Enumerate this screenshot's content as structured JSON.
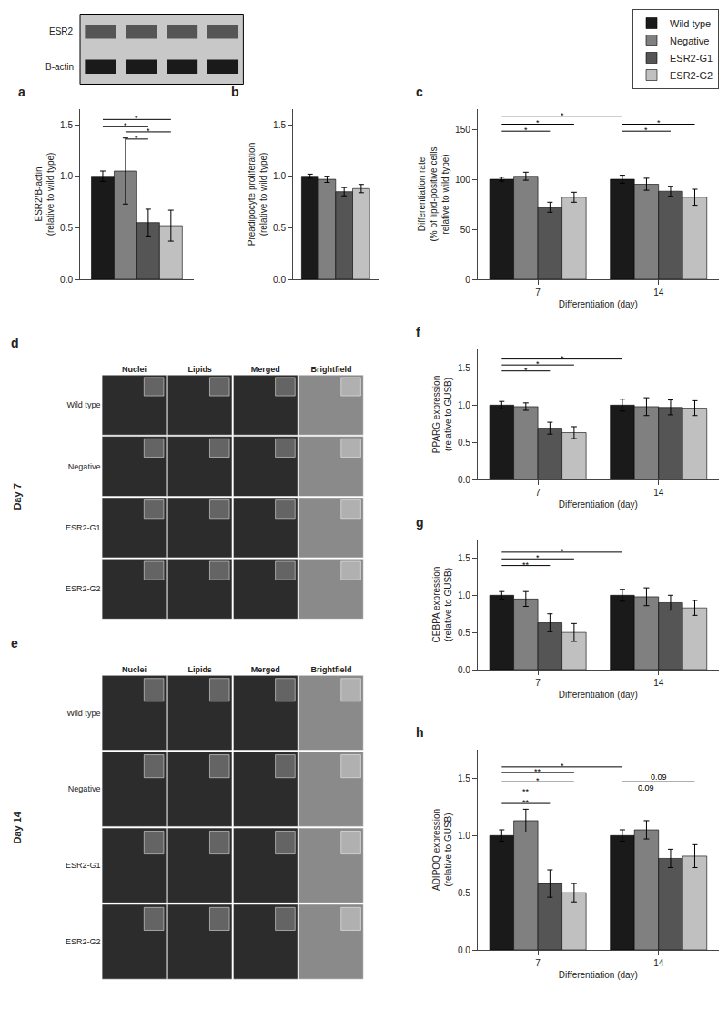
{
  "chart_data": [
    {
      "type": "blot",
      "y": [
        "ESR2",
        "B-actin"
      ]
    },
    {
      "type": "bar",
      "title": "a",
      "ylabel": "ESR2/B-actin\n(relative to wild type)",
      "categories": [
        null
      ],
      "series": [
        {
          "name": "Wild type",
          "color": "#1a1a1a",
          "values": [
            1.0
          ],
          "errors": [
            0.05
          ]
        },
        {
          "name": "Negative",
          "color": "#808080",
          "values": [
            1.05
          ],
          "errors": [
            0.32
          ]
        },
        {
          "name": "ESR2-G1",
          "color": "#555555",
          "values": [
            0.55
          ],
          "errors": [
            0.13
          ]
        },
        {
          "name": "ESR2-G2",
          "color": "#c0c0c0",
          "values": [
            0.52
          ],
          "errors": [
            0.15
          ]
        }
      ],
      "ylim": [
        0.0,
        1.65
      ],
      "yticks": [
        {
          "value": 0.0,
          "label": "0.0"
        },
        0.5,
        {
          "value": 1.0,
          "label": "1.0"
        },
        1.5
      ],
      "grid": false,
      "tick_labels": "y",
      "legend": "upper right",
      "annotations": [
        {
          "text": "*",
          "y": 1.48,
          "x1": {
            "category": null,
            "series": "Wild type"
          },
          "x2": {
            "category": null,
            "series": "ESR2-G1"
          }
        },
        {
          "text": "*",
          "y": 1.55,
          "x1": {
            "category": null,
            "series": "Wild type"
          },
          "x2": {
            "category": null,
            "series": "ESR2-G2"
          }
        },
        {
          "text": "*",
          "y": 1.36,
          "x1": {
            "category": null,
            "series": "Negative"
          },
          "x2": {
            "category": null,
            "series": "ESR2-G1"
          }
        },
        {
          "text": "*",
          "y": 1.43,
          "x1": {
            "category": null,
            "series": "Negative"
          },
          "x2": {
            "category": null,
            "series": "ESR2-G2"
          }
        }
      ]
    },
    {
      "type": "bar",
      "title": "b",
      "ylabel": "Preadipocyte proliferation\n(relative to wild type)",
      "categories": [
        null
      ],
      "series": [
        {
          "name": "Wild type",
          "color": "#1a1a1a",
          "values": [
            1.0
          ],
          "errors": [
            0.02
          ]
        },
        {
          "name": "Negative",
          "color": "#808080",
          "values": [
            0.97
          ],
          "errors": [
            0.03
          ]
        },
        {
          "name": "ESR2-G1",
          "color": "#555555",
          "values": [
            0.85
          ],
          "errors": [
            0.04
          ]
        },
        {
          "name": "ESR2-G2",
          "color": "#c0c0c0",
          "values": [
            0.88
          ],
          "errors": [
            0.04
          ]
        }
      ],
      "ylim": [
        0.0,
        1.65
      ],
      "yticks": [
        {
          "value": 0.0,
          "label": "0.0"
        },
        0.5,
        {
          "value": 1.0,
          "label": "1.0"
        },
        1.5
      ],
      "grid": false,
      "tick_labels": "y"
    },
    {
      "type": "bar",
      "title": "c",
      "ylabel": "Differentiation rate\n(% of lipid-positive cells\nrelative to wild type)",
      "xlabel": "Differentiation (day)",
      "categories": [
        "7",
        "14"
      ],
      "series": [
        {
          "name": "Wild type",
          "color": "#1a1a1a",
          "values": [
            100,
            100
          ],
          "errors": [
            2,
            4
          ]
        },
        {
          "name": "Negative",
          "color": "#808080",
          "values": [
            103,
            95
          ],
          "errors": [
            4,
            6
          ]
        },
        {
          "name": "ESR2-G1",
          "color": "#555555",
          "values": [
            72,
            88
          ],
          "errors": [
            5,
            5
          ]
        },
        {
          "name": "ESR2-G2",
          "color": "#c0c0c0",
          "values": [
            82,
            82
          ],
          "errors": [
            5,
            8
          ]
        }
      ],
      "ylim": [
        0,
        170
      ],
      "yticks": [
        0,
        50,
        100,
        150
      ],
      "grid": false,
      "annotations": [
        {
          "text": "*",
          "y": 148,
          "x1": {
            "category": "7",
            "series": "Wild type"
          },
          "x2": {
            "category": "7",
            "series": "ESR2-G1"
          }
        },
        {
          "text": "*",
          "y": 155,
          "x1": {
            "category": "7",
            "series": "Wild type"
          },
          "x2": {
            "category": "7",
            "series": "ESR2-G2"
          }
        },
        {
          "text": "*",
          "y": 163,
          "x1": {
            "category": "7",
            "series": "Wild type"
          },
          "x2": {
            "category": "14",
            "series": "Wild type"
          }
        },
        {
          "text": "*",
          "y": 148,
          "x1": {
            "category": "14",
            "series": "Wild type"
          },
          "x2": {
            "category": "14",
            "series": "ESR2-G1"
          }
        },
        {
          "text": "*",
          "y": 155,
          "x1": {
            "category": "14",
            "series": "Wild type"
          },
          "x2": {
            "category": "14",
            "series": "ESR2-G2"
          }
        }
      ]
    },
    {
      "type": "image_grid",
      "title": "d",
      "annotations": [
        "Day 7"
      ],
      "x": [
        "Nuclei",
        "Lipids",
        "Merged",
        "Brightfield"
      ],
      "y": [
        "Wild type",
        "Negative",
        "ESR2-G1",
        "ESR2-G2"
      ]
    },
    {
      "type": "image_grid",
      "title": "e",
      "annotations": [
        "Day 14"
      ],
      "x": [
        "Nuclei",
        "Lipids",
        "Merged",
        "Brightfield"
      ],
      "y": [
        "Wild type",
        "Negative",
        "ESR2-G1",
        "ESR2-G2"
      ]
    },
    {
      "type": "bar",
      "title": "f",
      "ylabel": "PPARG expression\n(relative to GUSB)",
      "xlabel": "Differentiation (day)",
      "categories": [
        "7",
        "14"
      ],
      "series": [
        {
          "name": "Wild type",
          "color": "#1a1a1a",
          "values": [
            1.0,
            1.0
          ],
          "errors": [
            0.05,
            0.08
          ]
        },
        {
          "name": "Negative",
          "color": "#808080",
          "values": [
            0.98,
            0.98
          ],
          "errors": [
            0.05,
            0.12
          ]
        },
        {
          "name": "ESR2-G1",
          "color": "#555555",
          "values": [
            0.69,
            0.97
          ],
          "errors": [
            0.08,
            0.1
          ]
        },
        {
          "name": "ESR2-G2",
          "color": "#c0c0c0",
          "values": [
            0.63,
            0.96
          ],
          "errors": [
            0.08,
            0.1
          ]
        }
      ],
      "ylim": [
        0.0,
        1.75
      ],
      "yticks": [
        {
          "value": 0.0,
          "label": "0.0"
        },
        0.5,
        {
          "value": 1.0,
          "label": "1.0"
        },
        1.5
      ],
      "grid": false,
      "annotations": [
        {
          "text": "*",
          "y": 1.46,
          "x1": {
            "category": "7",
            "series": "Wild type"
          },
          "x2": {
            "category": "7",
            "series": "ESR2-G1"
          }
        },
        {
          "text": "*",
          "y": 1.54,
          "x1": {
            "category": "7",
            "series": "Wild type"
          },
          "x2": {
            "category": "7",
            "series": "ESR2-G2"
          }
        },
        {
          "text": "*",
          "y": 1.62,
          "x1": {
            "category": "7",
            "series": "Wild type"
          },
          "x2": {
            "category": "14",
            "series": "Wild type"
          }
        }
      ]
    },
    {
      "type": "bar",
      "title": "g",
      "ylabel": "CEBPA expression\n(relative to GUSB)",
      "xlabel": "Differentiation (day)",
      "categories": [
        "7",
        "14"
      ],
      "series": [
        {
          "name": "Wild type",
          "color": "#1a1a1a",
          "values": [
            1.0,
            1.0
          ],
          "errors": [
            0.05,
            0.08
          ]
        },
        {
          "name": "Negative",
          "color": "#808080",
          "values": [
            0.95,
            0.98
          ],
          "errors": [
            0.1,
            0.12
          ]
        },
        {
          "name": "ESR2-G1",
          "color": "#555555",
          "values": [
            0.63,
            0.9
          ],
          "errors": [
            0.12,
            0.1
          ]
        },
        {
          "name": "ESR2-G2",
          "color": "#c0c0c0",
          "values": [
            0.5,
            0.83
          ],
          "errors": [
            0.12,
            0.1
          ]
        }
      ],
      "ylim": [
        0.0,
        1.75
      ],
      "yticks": [
        {
          "value": 0.0,
          "label": "0.0"
        },
        0.5,
        {
          "value": 1.0,
          "label": "1.0"
        },
        1.5
      ],
      "grid": false,
      "annotations": [
        {
          "text": "**",
          "y": 1.4,
          "x1": {
            "category": "7",
            "series": "Wild type"
          },
          "x2": {
            "category": "7",
            "series": "ESR2-G1"
          }
        },
        {
          "text": "*",
          "y": 1.49,
          "x1": {
            "category": "7",
            "series": "Wild type"
          },
          "x2": {
            "category": "7",
            "series": "ESR2-G2"
          }
        },
        {
          "text": "*",
          "y": 1.58,
          "x1": {
            "category": "7",
            "series": "Wild type"
          },
          "x2": {
            "category": "14",
            "series": "Wild type"
          }
        }
      ]
    },
    {
      "type": "bar",
      "title": "h",
      "ylabel": "ADIPOQ expression\n(relative to GUSB)",
      "xlabel": "Differentiation (day)",
      "categories": [
        "7",
        "14"
      ],
      "series": [
        {
          "name": "Wild type",
          "color": "#1a1a1a",
          "values": [
            1.0,
            1.0
          ],
          "errors": [
            0.05,
            0.05
          ]
        },
        {
          "name": "Negative",
          "color": "#808080",
          "values": [
            1.13,
            1.05
          ],
          "errors": [
            0.1,
            0.08
          ]
        },
        {
          "name": "ESR2-G1",
          "color": "#555555",
          "values": [
            0.58,
            0.8
          ],
          "errors": [
            0.12,
            0.08
          ]
        },
        {
          "name": "ESR2-G2",
          "color": "#c0c0c0",
          "values": [
            0.5,
            0.82
          ],
          "errors": [
            0.08,
            0.1
          ]
        }
      ],
      "ylim": [
        0.0,
        1.75
      ],
      "yticks": [
        {
          "value": 0.0,
          "label": "0.0"
        },
        0.5,
        {
          "value": 1.0,
          "label": "1.0"
        },
        1.5
      ],
      "grid": false,
      "annotations": [
        {
          "text": "**",
          "y": 1.38,
          "x1": {
            "category": "7",
            "series": "Wild type"
          },
          "x2": {
            "category": "7",
            "series": "ESR2-G1"
          }
        },
        {
          "text": "*",
          "y": 1.47,
          "x1": {
            "category": "7",
            "series": "Wild type"
          },
          "x2": {
            "category": "7",
            "series": "ESR2-G2"
          }
        },
        {
          "text": "*",
          "y": 1.6,
          "x1": {
            "category": "7",
            "series": "Wild type"
          },
          "x2": {
            "category": "14",
            "series": "Wild type"
          }
        },
        {
          "text": "**",
          "y": 1.28,
          "x1": {
            "category": "7",
            "series": "Wild type"
          },
          "x2": {
            "category": "7",
            "series": "ESR2-G1"
          }
        },
        {
          "text": "**",
          "y": 1.55,
          "x1": {
            "category": "7",
            "series": "Wild type"
          },
          "x2": {
            "category": "7",
            "series": "ESR2-G2"
          }
        },
        {
          "text": "0.09",
          "y": 1.38,
          "x1": {
            "category": "14",
            "series": "Wild type"
          },
          "x2": {
            "category": "14",
            "series": "ESR2-G1"
          }
        },
        {
          "text": "0.09",
          "y": 1.47,
          "x1": {
            "category": "14",
            "series": "Wild type"
          },
          "x2": {
            "category": "14",
            "series": "ESR2-G2"
          }
        }
      ]
    }
  ]
}
